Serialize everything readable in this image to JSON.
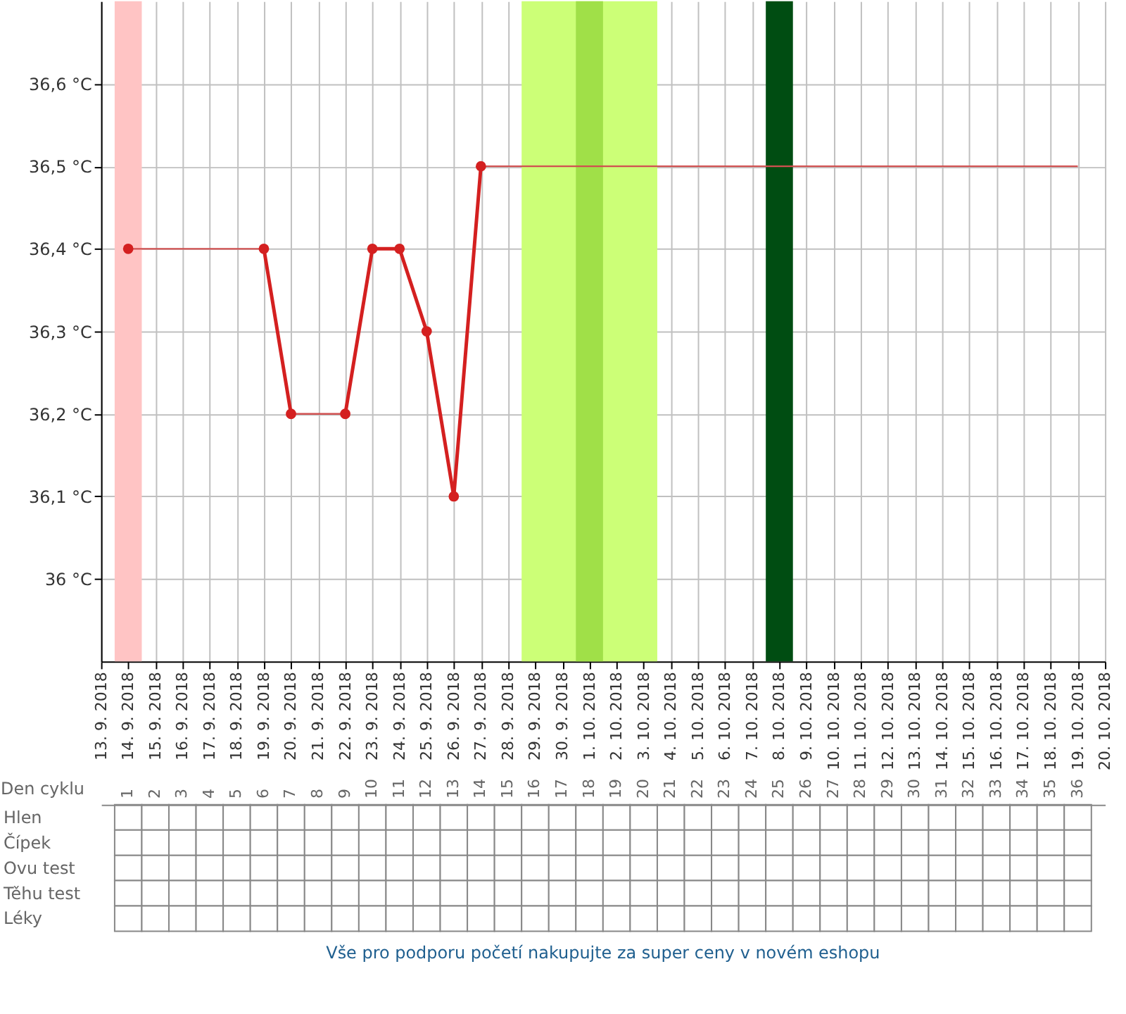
{
  "chart_data": [
    {
      "type": "line",
      "x": [
        "2018-09-14",
        "2018-09-15",
        "2018-09-16",
        "2018-09-17",
        "2018-09-18",
        "2018-09-19",
        "2018-09-20",
        "2018-09-21",
        "2018-09-22",
        "2018-09-23",
        "2018-09-24",
        "2018-09-25",
        "2018-09-26",
        "2018-09-27"
      ],
      "series": [
        {
          "color": "#d42020",
          "type": "line",
          "marker": "circle",
          "values": [
            36.4,
            null,
            null,
            null,
            null,
            36.4,
            36.2,
            null,
            36.2,
            36.4,
            36.4,
            36.3,
            36.1,
            36.5
          ]
        },
        {
          "color": "#d05050",
          "type": "line",
          "marker": "none",
          "x": [
            "2018-09-14",
            "2018-09-19"
          ],
          "values": [
            36.4,
            36.4
          ]
        },
        {
          "color": "#d05050",
          "type": "line",
          "marker": "none",
          "x": [
            "2018-09-20",
            "2018-09-22"
          ],
          "values": [
            36.2,
            36.2
          ]
        },
        {
          "color": "#d05050",
          "type": "line",
          "marker": "none",
          "x": [
            "2018-09-27",
            "2018-10-19"
          ],
          "values": [
            36.5,
            36.5
          ]
        }
      ],
      "xlim": [
        "2018-09-13",
        "2018-10-20"
      ],
      "xticks": [
        {
          "value": "2018-09-13",
          "label": "13. 9. 2018"
        },
        {
          "value": "2018-09-14",
          "label": "14. 9. 2018"
        },
        {
          "value": "2018-09-15",
          "label": "15. 9. 2018"
        },
        {
          "value": "2018-09-16",
          "label": "16. 9. 2018"
        },
        {
          "value": "2018-09-17",
          "label": "17. 9. 2018"
        },
        {
          "value": "2018-09-18",
          "label": "18. 9. 2018"
        },
        {
          "value": "2018-09-19",
          "label": "19. 9. 2018"
        },
        {
          "value": "2018-09-20",
          "label": "20. 9. 2018"
        },
        {
          "value": "2018-09-21",
          "label": "21. 9. 2018"
        },
        {
          "value": "2018-09-22",
          "label": "22. 9. 2018"
        },
        {
          "value": "2018-09-23",
          "label": "23. 9. 2018"
        },
        {
          "value": "2018-09-24",
          "label": "24. 9. 2018"
        },
        {
          "value": "2018-09-25",
          "label": "25. 9. 2018"
        },
        {
          "value": "2018-09-26",
          "label": "26. 9. 2018"
        },
        {
          "value": "2018-09-27",
          "label": "27. 9. 2018"
        },
        {
          "value": "2018-09-28",
          "label": "28. 9. 2018"
        },
        {
          "value": "2018-09-29",
          "label": "29. 9. 2018"
        },
        {
          "value": "2018-09-30",
          "label": "30. 9. 2018"
        },
        {
          "value": "2018-10-01",
          "label": "1. 10. 2018"
        },
        {
          "value": "2018-10-02",
          "label": "2. 10. 2018"
        },
        {
          "value": "2018-10-03",
          "label": "3. 10. 2018"
        },
        {
          "value": "2018-10-04",
          "label": "4. 10. 2018"
        },
        {
          "value": "2018-10-05",
          "label": "5. 10. 2018"
        },
        {
          "value": "2018-10-06",
          "label": "6. 10. 2018"
        },
        {
          "value": "2018-10-07",
          "label": "7. 10. 2018"
        },
        {
          "value": "2018-10-08",
          "label": "8. 10. 2018"
        },
        {
          "value": "2018-10-09",
          "label": "9. 10. 2018"
        },
        {
          "value": "2018-10-10",
          "label": "10. 10. 2018"
        },
        {
          "value": "2018-10-11",
          "label": "11. 10. 2018"
        },
        {
          "value": "2018-10-12",
          "label": "12. 10. 2018"
        },
        {
          "value": "2018-10-13",
          "label": "13. 10. 2018"
        },
        {
          "value": "2018-10-14",
          "label": "14. 10. 2018"
        },
        {
          "value": "2018-10-15",
          "label": "15. 10. 2018"
        },
        {
          "value": "2018-10-16",
          "label": "16. 10. 2018"
        },
        {
          "value": "2018-10-17",
          "label": "17. 10. 2018"
        },
        {
          "value": "2018-10-18",
          "label": "18. 10. 2018"
        },
        {
          "value": "2018-10-19",
          "label": "19. 10. 2018"
        },
        {
          "value": "2018-10-20",
          "label": "20. 10. 2018"
        }
      ],
      "ylim": [
        35.9,
        36.7
      ],
      "yticks": [
        {
          "value": 36.0,
          "label": "36 °C"
        },
        {
          "value": 36.1,
          "label": "36,1 °C"
        },
        {
          "value": 36.2,
          "label": "36,2 °C"
        },
        {
          "value": 36.3,
          "label": "36,3 °C"
        },
        {
          "value": 36.4,
          "label": "36,4 °C"
        },
        {
          "value": 36.5,
          "label": "36,5 °C"
        },
        {
          "value": 36.6,
          "label": "36,6 °C"
        }
      ],
      "bands": [
        {
          "axis": "x",
          "from": "2018-09-13T12:00",
          "to": "2018-09-14T12:00",
          "color": "#ffc4c4"
        },
        {
          "axis": "x",
          "from": "2018-09-28T12:00",
          "to": "2018-10-03T12:00",
          "color": "#ccff77"
        },
        {
          "axis": "x",
          "from": "2018-09-30T12:00",
          "to": "2018-10-01T12:00",
          "color": "#a0e048"
        },
        {
          "axis": "x",
          "from": "2018-10-07T12:00",
          "to": "2018-10-08T12:00",
          "color": "#004d12"
        }
      ],
      "grid": true,
      "line_style": "solid"
    },
    {
      "type": "heatmap",
      "xlabel": "Den cyklu",
      "categories": [
        "1",
        "2",
        "3",
        "4",
        "5",
        "6",
        "7",
        "8",
        "9",
        "10",
        "11",
        "12",
        "13",
        "14",
        "15",
        "16",
        "17",
        "18",
        "19",
        "20",
        "21",
        "22",
        "23",
        "24",
        "25",
        "26",
        "27",
        "28",
        "29",
        "30",
        "31",
        "32",
        "33",
        "34",
        "35",
        "36"
      ],
      "y_categories": [
        "Hlen",
        "Čípek",
        "Ovu test",
        "Těhu test",
        "Léky"
      ],
      "cells": [
        [
          null,
          null,
          null,
          null,
          null,
          null,
          null,
          null,
          null,
          null,
          null,
          null,
          null,
          null,
          null,
          null,
          null,
          null,
          null,
          null,
          null,
          null,
          null,
          null,
          null,
          null,
          null,
          null,
          null,
          null,
          null,
          null,
          null,
          null,
          null,
          null
        ],
        [
          null,
          null,
          null,
          null,
          null,
          null,
          null,
          null,
          null,
          null,
          null,
          null,
          null,
          null,
          null,
          null,
          null,
          null,
          null,
          null,
          null,
          null,
          null,
          null,
          null,
          null,
          null,
          null,
          null,
          null,
          null,
          null,
          null,
          null,
          null,
          null
        ],
        [
          null,
          null,
          null,
          null,
          null,
          null,
          null,
          null,
          null,
          null,
          null,
          null,
          null,
          null,
          null,
          null,
          null,
          null,
          null,
          null,
          null,
          null,
          null,
          null,
          null,
          null,
          null,
          null,
          null,
          null,
          null,
          null,
          null,
          null,
          null,
          null
        ],
        [
          null,
          null,
          null,
          null,
          null,
          null,
          null,
          null,
          null,
          null,
          null,
          null,
          null,
          null,
          null,
          null,
          null,
          null,
          null,
          null,
          null,
          null,
          null,
          null,
          null,
          null,
          null,
          null,
          null,
          null,
          null,
          null,
          null,
          null,
          null,
          null
        ],
        [
          null,
          null,
          null,
          null,
          null,
          null,
          null,
          null,
          null,
          null,
          null,
          null,
          null,
          null,
          null,
          null,
          null,
          null,
          null,
          null,
          null,
          null,
          null,
          null,
          null,
          null,
          null,
          null,
          null,
          null,
          null,
          null,
          null,
          null,
          null,
          null
        ]
      ],
      "annotations": [
        "Vše pro podporu početí nakupujte za super ceny v novém eshopu"
      ]
    }
  ]
}
